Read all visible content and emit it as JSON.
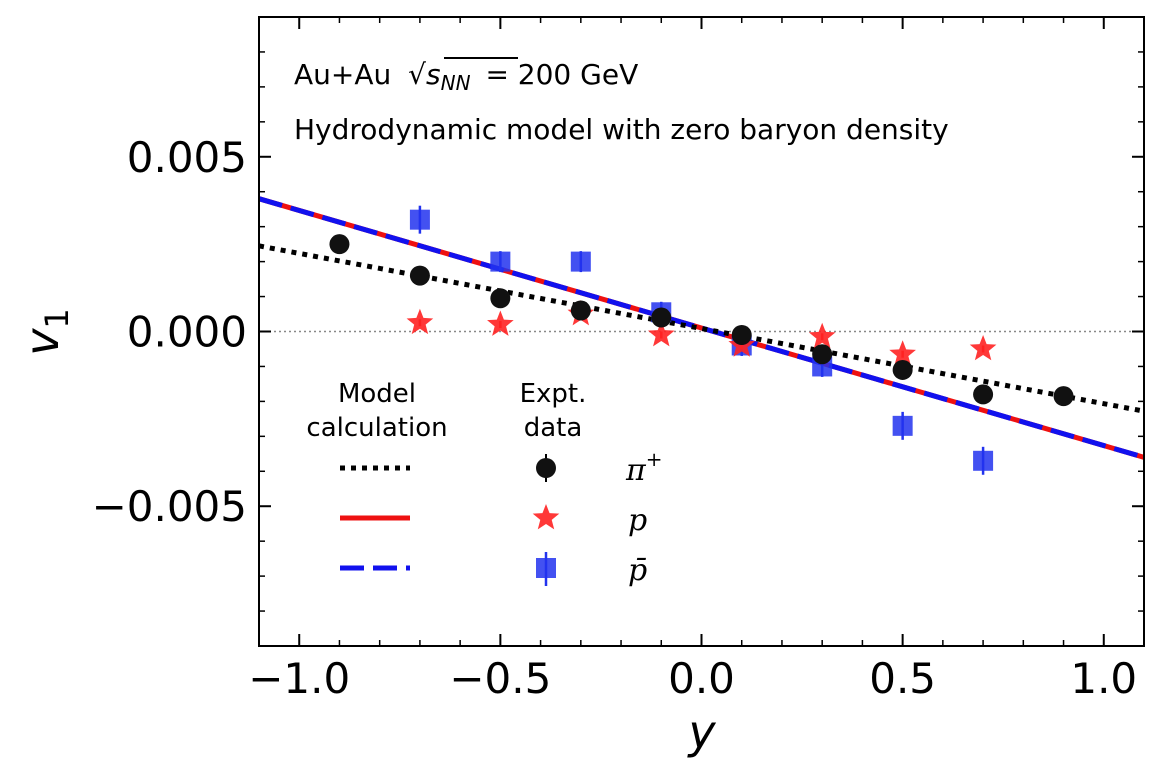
{
  "chart_data": {
    "type": "scatter",
    "title_line1_prefix": "Au+Au",
    "sqrt_symbol": "√",
    "sqrt_arg_main": "s",
    "sqrt_arg_sub": "NN",
    "title_line1_suffix": "= 200 GeV",
    "title_line2": "Hydrodynamic model with zero baryon density",
    "xlabel": "y",
    "ylabel_main": "v",
    "ylabel_sub": "1",
    "xlim": [
      -1.1,
      1.1
    ],
    "ylim": [
      -0.009,
      0.009
    ],
    "xticks": [
      -1.0,
      -0.5,
      0.0,
      0.5,
      1.0
    ],
    "xtick_labels": [
      "−1.0",
      "−0.5",
      "0.0",
      "0.5",
      "1.0"
    ],
    "yticks": [
      -0.005,
      0.0,
      0.005
    ],
    "ytick_labels": [
      "−0.005",
      "0.000",
      "0.005"
    ],
    "reference_line_y": 0.0,
    "legend": {
      "model_heading": [
        "Model",
        "calculation"
      ],
      "data_heading": [
        "Expt.",
        "data"
      ]
    },
    "model_lines": [
      {
        "name": "π+",
        "style": "dotted",
        "color": "#000000",
        "x": [
          -1.1,
          1.1
        ],
        "y": [
          0.00245,
          -0.00228
        ]
      },
      {
        "name": "p",
        "style": "solid",
        "color": "#ee1111",
        "x": [
          -1.1,
          1.1
        ],
        "y": [
          0.0038,
          -0.0036
        ]
      },
      {
        "name": "p̄",
        "style": "dashed",
        "color": "#1111ee",
        "x": [
          -1.1,
          1.1
        ],
        "y": [
          0.0038,
          -0.0036
        ]
      }
    ],
    "series": [
      {
        "name": "π",
        "sup": "+",
        "marker": "circle",
        "color": "#111111",
        "x": [
          -0.9,
          -0.7,
          -0.5,
          -0.3,
          -0.1,
          0.1,
          0.3,
          0.5,
          0.7,
          0.9
        ],
        "y": [
          0.0025,
          0.0016,
          0.00095,
          0.0006,
          0.0004,
          -0.0001,
          -0.00065,
          -0.0011,
          -0.0018,
          -0.00185
        ],
        "err": [
          0.0002,
          0.0002,
          0.0002,
          0.0002,
          0.0002,
          0.0002,
          0.0002,
          0.0002,
          0.0002,
          0.0002
        ]
      },
      {
        "name": "p",
        "marker": "star",
        "color": "#ff2222",
        "x": [
          -0.7,
          -0.5,
          -0.3,
          -0.1,
          0.1,
          0.3,
          0.5,
          0.7
        ],
        "y": [
          0.00025,
          0.0002,
          0.0005,
          -0.0001,
          -0.0004,
          -0.00015,
          -0.00065,
          -0.0005
        ],
        "err": [
          0.0001,
          0.0001,
          0.0001,
          0.0001,
          0.0001,
          0.0001,
          0.0001,
          0.0001
        ]
      },
      {
        "name": "p̄",
        "marker": "square",
        "color": "#2233ee",
        "x": [
          -0.7,
          -0.5,
          -0.3,
          -0.1,
          0.1,
          0.3,
          0.5,
          0.7
        ],
        "y": [
          0.0032,
          0.002,
          0.002,
          0.00055,
          -0.0004,
          -0.001,
          -0.0027,
          -0.0037
        ],
        "err": [
          0.0004,
          0.0003,
          0.0003,
          0.0003,
          0.0003,
          0.0003,
          0.0004,
          0.0004
        ]
      }
    ]
  }
}
